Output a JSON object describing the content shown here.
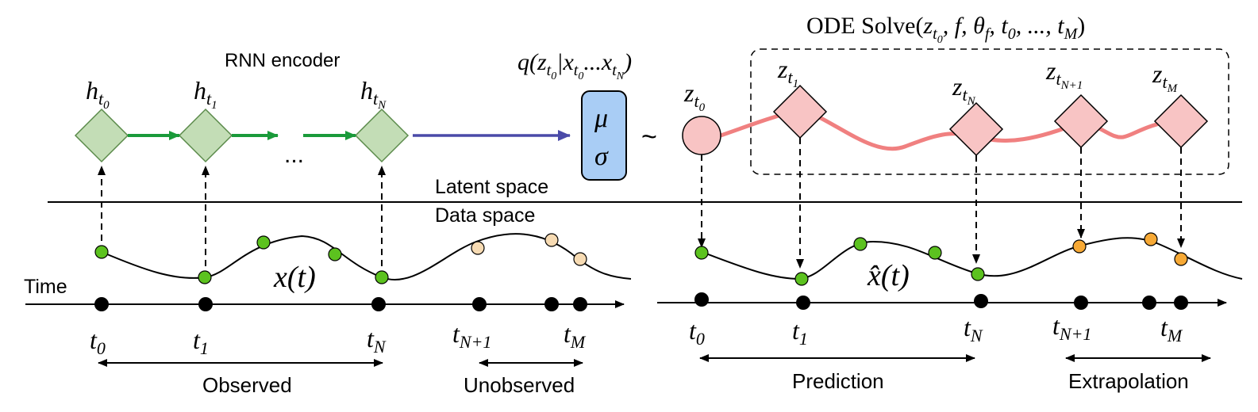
{
  "labels": {
    "rnn_encoder": "RNN encoder",
    "latent_space": "Latent space",
    "data_space": "Data space",
    "time": "Time",
    "observed": "Observed",
    "unobserved": "Unobserved",
    "prediction": "Prediction",
    "extrapolation": "Extrapolation",
    "ode_solve_name": "ODE Solve",
    "ode_solve_args": "(z",
    "ellipsis": "...",
    "tilde": "~"
  },
  "encoder": {
    "hidden_states": [
      {
        "base": "h",
        "sub": "t",
        "subsub": "0"
      },
      {
        "base": "h",
        "sub": "t",
        "subsub": "1"
      },
      {
        "base": "h",
        "sub": "t",
        "subsub": "N"
      }
    ],
    "posterior": {
      "text": "q(z",
      "sub": "t",
      "subsub": "0",
      "mid": "|x",
      "mid_sub": "t",
      "mid_subsub": "0",
      "dots": "...x",
      "end_sub": "t",
      "end_subsub": "N",
      "close": ")"
    },
    "mu": "μ",
    "sigma": "σ"
  },
  "latents": {
    "z0": {
      "base": "z",
      "sub": "t",
      "subsub": "0"
    },
    "z1": {
      "base": "z",
      "sub": "t",
      "subsub": "1"
    },
    "zN": {
      "base": "z",
      "sub": "t",
      "subsub": "N"
    },
    "zN1": {
      "base": "z",
      "sub": "t",
      "subsub": "N+1"
    },
    "zM": {
      "base": "z",
      "sub": "t",
      "subsub": "M"
    }
  },
  "ode": {
    "full": "ODE Solve(z_{t0}, f, θ_f, t_0, ..., t_M)",
    "parts": [
      "ODE Solve(",
      "z",
      "t",
      "0",
      ", f, θ",
      "f",
      ", t",
      "0",
      ", ..., t",
      "M",
      ")"
    ]
  },
  "curves": {
    "left": {
      "base": "x",
      "arg": "(t)"
    },
    "right": {
      "base": "x̂",
      "arg": "(t)"
    }
  },
  "time_labels_left": [
    {
      "base": "t",
      "sub": "0"
    },
    {
      "base": "t",
      "sub": "1"
    },
    {
      "base": "t",
      "sub": "N"
    },
    {
      "base": "t",
      "sub": "N+1"
    },
    {
      "base": "t",
      "sub": "M"
    }
  ],
  "time_labels_right": [
    {
      "base": "t",
      "sub": "0"
    },
    {
      "base": "t",
      "sub": "1"
    },
    {
      "base": "t",
      "sub": "N"
    },
    {
      "base": "t",
      "sub": "N+1"
    },
    {
      "base": "t",
      "sub": "M"
    }
  ],
  "colors": {
    "green_fill": "#c3ddb6",
    "green_stroke": "#5a8a4a",
    "green_arrow": "#1a9a3a",
    "green_dot": "#5cc21f",
    "purple_arrow": "#4a4aa8",
    "blue_box": "#a9cdf5",
    "pink_fill": "#f8c4c4",
    "pink_curve": "#f08080",
    "orange_dot": "#f7a935",
    "peach_dot": "#f7dbb3",
    "black": "#000000"
  }
}
